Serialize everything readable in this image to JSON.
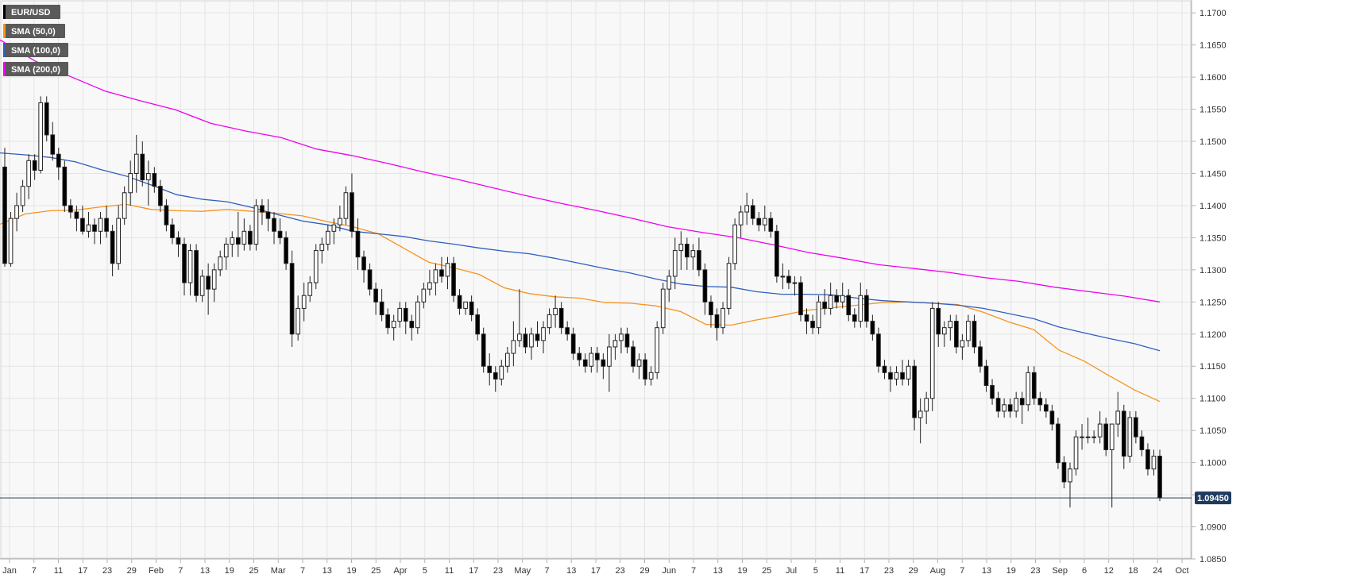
{
  "chart_data": {
    "type": "candlestick",
    "symbol": "EUR/USD",
    "last_price": "1.09450",
    "ylim": [
      1.085,
      1.172
    ],
    "y_ticks": [
      "1.0850",
      "1.0900",
      "1.0950",
      "1.1000",
      "1.1050",
      "1.1100",
      "1.1150",
      "1.1200",
      "1.1250",
      "1.1300",
      "1.1350",
      "1.1400",
      "1.1450",
      "1.1500",
      "1.1550",
      "1.1600",
      "1.1650",
      "1.1700"
    ],
    "x_ticks": [
      "Jan",
      "7",
      "11",
      "17",
      "23",
      "29",
      "Feb",
      "7",
      "13",
      "19",
      "25",
      "Mar",
      "7",
      "13",
      "19",
      "25",
      "Apr",
      "5",
      "11",
      "17",
      "23",
      "May",
      "7",
      "13",
      "17",
      "23",
      "29",
      "Jun",
      "7",
      "13",
      "19",
      "25",
      "Jul",
      "5",
      "11",
      "17",
      "23",
      "29",
      "Aug",
      "7",
      "13",
      "19",
      "23",
      "Sep",
      "6",
      "12",
      "18",
      "24",
      "Oct"
    ],
    "legend": [
      {
        "label": "EUR/USD",
        "color": "#000000"
      },
      {
        "label": "SMA (50,0)",
        "color": "#f7931e"
      },
      {
        "label": "SMA (100,0)",
        "color": "#2e5fbf"
      },
      {
        "label": "SMA (200,0)",
        "color": "#ee00ee"
      }
    ],
    "series": [
      {
        "name": "SMA (50,0)",
        "color": "#f7931e",
        "values": [
          1.1371,
          1.1387,
          1.1392,
          1.1393,
          1.1398,
          1.1402,
          1.1394,
          1.1392,
          1.1391,
          1.1394,
          1.1391,
          1.1388,
          1.1384,
          1.1375,
          1.1367,
          1.1356,
          1.1334,
          1.1312,
          1.1303,
          1.1293,
          1.1272,
          1.1263,
          1.1258,
          1.1256,
          1.1249,
          1.1248,
          1.1244,
          1.1235,
          1.1215,
          1.1214,
          1.1222,
          1.1229,
          1.1237,
          1.1241,
          1.1245,
          1.1249,
          1.125,
          1.1248,
          1.1246,
          1.1234,
          1.1219,
          1.1207,
          1.1175,
          1.1158,
          1.1135,
          1.1113,
          1.1095
        ]
      },
      {
        "name": "SMA (100,0)",
        "color": "#2e5fbf",
        "values": [
          1.1482,
          1.1479,
          1.1475,
          1.1468,
          1.1456,
          1.1446,
          1.1432,
          1.1417,
          1.141,
          1.1406,
          1.1397,
          1.1386,
          1.1376,
          1.137,
          1.136,
          1.1356,
          1.1352,
          1.1345,
          1.134,
          1.1334,
          1.1329,
          1.1325,
          1.1318,
          1.131,
          1.1302,
          1.1295,
          1.1286,
          1.1278,
          1.1274,
          1.1273,
          1.1266,
          1.1262,
          1.1262,
          1.1261,
          1.1256,
          1.1252,
          1.125,
          1.1248,
          1.1245,
          1.124,
          1.1232,
          1.1224,
          1.1211,
          1.1202,
          1.1193,
          1.1185,
          1.1174
        ]
      },
      {
        "name": "SMA (200,0)",
        "color": "#ee00ee",
        "values": [
          1.1658,
          1.1625,
          1.1601,
          1.1578,
          1.1563,
          1.1549,
          1.1528,
          1.1516,
          1.1506,
          1.1488,
          1.1478,
          1.1466,
          1.1453,
          1.1441,
          1.1428,
          1.1415,
          1.1403,
          1.1392,
          1.138,
          1.1367,
          1.1358,
          1.135,
          1.1339,
          1.1327,
          1.1318,
          1.1308,
          1.1302,
          1.1296,
          1.1288,
          1.1282,
          1.1273,
          1.1266,
          1.1259,
          1.125
        ]
      }
    ],
    "candles": [
      [
        1.146,
        1.149,
        1.1305,
        1.131
      ],
      [
        1.131,
        1.139,
        1.1305,
        1.138
      ],
      [
        1.138,
        1.142,
        1.136,
        1.14
      ],
      [
        1.14,
        1.144,
        1.139,
        1.143
      ],
      [
        1.143,
        1.148,
        1.141,
        1.147
      ],
      [
        1.147,
        1.148,
        1.144,
        1.1455
      ],
      [
        1.1455,
        1.157,
        1.145,
        1.156
      ],
      [
        1.156,
        1.157,
        1.15,
        1.151
      ],
      [
        1.151,
        1.153,
        1.147,
        1.148
      ],
      [
        1.148,
        1.149,
        1.144,
        1.146
      ],
      [
        1.146,
        1.147,
        1.139,
        1.14
      ],
      [
        1.14,
        1.141,
        1.138,
        1.139
      ],
      [
        1.139,
        1.14,
        1.136,
        1.138
      ],
      [
        1.138,
        1.14,
        1.1355,
        1.136
      ],
      [
        1.136,
        1.139,
        1.135,
        1.137
      ],
      [
        1.137,
        1.138,
        1.134,
        1.136
      ],
      [
        1.136,
        1.139,
        1.134,
        1.138
      ],
      [
        1.138,
        1.14,
        1.135,
        1.136
      ],
      [
        1.136,
        1.137,
        1.129,
        1.131
      ],
      [
        1.131,
        1.14,
        1.13,
        1.138
      ],
      [
        1.138,
        1.143,
        1.137,
        1.142
      ],
      [
        1.142,
        1.147,
        1.14,
        1.145
      ],
      [
        1.145,
        1.151,
        1.142,
        1.148
      ],
      [
        1.148,
        1.15,
        1.143,
        1.144
      ],
      [
        1.144,
        1.147,
        1.14,
        1.145
      ],
      [
        1.145,
        1.146,
        1.142,
        1.143
      ],
      [
        1.143,
        1.144,
        1.139,
        1.14
      ],
      [
        1.14,
        1.141,
        1.136,
        1.137
      ],
      [
        1.137,
        1.138,
        1.134,
        1.135
      ],
      [
        1.135,
        1.136,
        1.132,
        1.134
      ],
      [
        1.134,
        1.135,
        1.126,
        1.128
      ],
      [
        1.128,
        1.134,
        1.126,
        1.133
      ],
      [
        1.133,
        1.134,
        1.125,
        1.126
      ],
      [
        1.126,
        1.13,
        1.125,
        1.129
      ],
      [
        1.129,
        1.131,
        1.123,
        1.127
      ],
      [
        1.127,
        1.131,
        1.125,
        1.13
      ],
      [
        1.13,
        1.133,
        1.129,
        1.132
      ],
      [
        1.132,
        1.135,
        1.13,
        1.134
      ],
      [
        1.134,
        1.136,
        1.132,
        1.135
      ],
      [
        1.135,
        1.139,
        1.132,
        1.134
      ],
      [
        1.134,
        1.138,
        1.133,
        1.136
      ],
      [
        1.136,
        1.137,
        1.133,
        1.134
      ],
      [
        1.134,
        1.141,
        1.133,
        1.14
      ],
      [
        1.14,
        1.141,
        1.137,
        1.139
      ],
      [
        1.139,
        1.141,
        1.136,
        1.138
      ],
      [
        1.138,
        1.139,
        1.134,
        1.136
      ],
      [
        1.136,
        1.138,
        1.134,
        1.135
      ],
      [
        1.135,
        1.136,
        1.13,
        1.131
      ],
      [
        1.131,
        1.133,
        1.118,
        1.12
      ],
      [
        1.12,
        1.126,
        1.119,
        1.124
      ],
      [
        1.124,
        1.128,
        1.122,
        1.126
      ],
      [
        1.126,
        1.129,
        1.125,
        1.128
      ],
      [
        1.128,
        1.134,
        1.127,
        1.133
      ],
      [
        1.133,
        1.135,
        1.131,
        1.134
      ],
      [
        1.134,
        1.137,
        1.133,
        1.136
      ],
      [
        1.136,
        1.138,
        1.134,
        1.137
      ],
      [
        1.137,
        1.14,
        1.136,
        1.138
      ],
      [
        1.138,
        1.143,
        1.137,
        1.142
      ],
      [
        1.142,
        1.145,
        1.135,
        1.136
      ],
      [
        1.136,
        1.138,
        1.13,
        1.132
      ],
      [
        1.132,
        1.133,
        1.128,
        1.13
      ],
      [
        1.13,
        1.131,
        1.126,
        1.127
      ],
      [
        1.127,
        1.128,
        1.123,
        1.125
      ],
      [
        1.125,
        1.127,
        1.122,
        1.123
      ],
      [
        1.123,
        1.124,
        1.12,
        1.121
      ],
      [
        1.121,
        1.123,
        1.119,
        1.122
      ],
      [
        1.122,
        1.125,
        1.121,
        1.124
      ],
      [
        1.124,
        1.125,
        1.12,
        1.122
      ],
      [
        1.122,
        1.123,
        1.119,
        1.121
      ],
      [
        1.121,
        1.126,
        1.12,
        1.125
      ],
      [
        1.125,
        1.128,
        1.124,
        1.127
      ],
      [
        1.127,
        1.13,
        1.126,
        1.128
      ],
      [
        1.128,
        1.131,
        1.126,
        1.13
      ],
      [
        1.13,
        1.132,
        1.128,
        1.129
      ],
      [
        1.129,
        1.132,
        1.127,
        1.131
      ],
      [
        1.131,
        1.132,
        1.125,
        1.126
      ],
      [
        1.126,
        1.127,
        1.123,
        1.124
      ],
      [
        1.124,
        1.125,
        1.123,
        1.125
      ],
      [
        1.125,
        1.126,
        1.122,
        1.123
      ],
      [
        1.123,
        1.124,
        1.119,
        1.12
      ],
      [
        1.12,
        1.121,
        1.114,
        1.115
      ],
      [
        1.115,
        1.117,
        1.112,
        1.114
      ],
      [
        1.114,
        1.115,
        1.111,
        1.113
      ],
      [
        1.113,
        1.116,
        1.112,
        1.115
      ],
      [
        1.115,
        1.118,
        1.114,
        1.117
      ],
      [
        1.117,
        1.122,
        1.115,
        1.119
      ],
      [
        1.119,
        1.127,
        1.118,
        1.12
      ],
      [
        1.12,
        1.121,
        1.117,
        1.118
      ],
      [
        1.118,
        1.121,
        1.116,
        1.12
      ],
      [
        1.12,
        1.122,
        1.118,
        1.119
      ],
      [
        1.119,
        1.122,
        1.117,
        1.121
      ],
      [
        1.121,
        1.124,
        1.12,
        1.123
      ],
      [
        1.123,
        1.126,
        1.121,
        1.124
      ],
      [
        1.124,
        1.125,
        1.12,
        1.121
      ],
      [
        1.121,
        1.122,
        1.119,
        1.12
      ],
      [
        1.12,
        1.121,
        1.116,
        1.117
      ],
      [
        1.117,
        1.118,
        1.115,
        1.116
      ],
      [
        1.116,
        1.117,
        1.114,
        1.115
      ],
      [
        1.115,
        1.118,
        1.114,
        1.117
      ],
      [
        1.117,
        1.118,
        1.114,
        1.116
      ],
      [
        1.116,
        1.117,
        1.113,
        1.115
      ],
      [
        1.115,
        1.12,
        1.111,
        1.118
      ],
      [
        1.118,
        1.12,
        1.116,
        1.119
      ],
      [
        1.119,
        1.121,
        1.117,
        1.12
      ],
      [
        1.12,
        1.121,
        1.117,
        1.118
      ],
      [
        1.118,
        1.119,
        1.114,
        1.115
      ],
      [
        1.115,
        1.117,
        1.113,
        1.116
      ],
      [
        1.116,
        1.117,
        1.112,
        1.113
      ],
      [
        1.113,
        1.115,
        1.112,
        1.114
      ],
      [
        1.114,
        1.122,
        1.113,
        1.121
      ],
      [
        1.121,
        1.128,
        1.12,
        1.127
      ],
      [
        1.127,
        1.13,
        1.125,
        1.129
      ],
      [
        1.129,
        1.135,
        1.127,
        1.133
      ],
      [
        1.133,
        1.136,
        1.13,
        1.134
      ],
      [
        1.134,
        1.135,
        1.13,
        1.132
      ],
      [
        1.132,
        1.134,
        1.13,
        1.133
      ],
      [
        1.133,
        1.135,
        1.129,
        1.13
      ],
      [
        1.13,
        1.131,
        1.123,
        1.125
      ],
      [
        1.125,
        1.126,
        1.121,
        1.123
      ],
      [
        1.123,
        1.124,
        1.119,
        1.121
      ],
      [
        1.121,
        1.125,
        1.12,
        1.124
      ],
      [
        1.124,
        1.132,
        1.123,
        1.131
      ],
      [
        1.131,
        1.138,
        1.13,
        1.137
      ],
      [
        1.137,
        1.14,
        1.135,
        1.139
      ],
      [
        1.139,
        1.142,
        1.137,
        1.14
      ],
      [
        1.14,
        1.141,
        1.137,
        1.138
      ],
      [
        1.138,
        1.139,
        1.136,
        1.137
      ],
      [
        1.137,
        1.14,
        1.136,
        1.138
      ],
      [
        1.138,
        1.139,
        1.135,
        1.136
      ],
      [
        1.136,
        1.137,
        1.128,
        1.129
      ],
      [
        1.129,
        1.131,
        1.127,
        1.129
      ],
      [
        1.129,
        1.13,
        1.127,
        1.128
      ],
      [
        1.128,
        1.129,
        1.126,
        1.128
      ],
      [
        1.128,
        1.129,
        1.122,
        1.123
      ],
      [
        1.123,
        1.124,
        1.12,
        1.122
      ],
      [
        1.122,
        1.123,
        1.12,
        1.121
      ],
      [
        1.121,
        1.126,
        1.12,
        1.125
      ],
      [
        1.125,
        1.127,
        1.123,
        1.124
      ],
      [
        1.124,
        1.128,
        1.123,
        1.126
      ],
      [
        1.126,
        1.127,
        1.124,
        1.125
      ],
      [
        1.125,
        1.128,
        1.124,
        1.126
      ],
      [
        1.126,
        1.127,
        1.122,
        1.123
      ],
      [
        1.123,
        1.124,
        1.121,
        1.122
      ],
      [
        1.122,
        1.128,
        1.121,
        1.126
      ],
      [
        1.126,
        1.127,
        1.121,
        1.122
      ],
      [
        1.122,
        1.123,
        1.119,
        1.12
      ],
      [
        1.12,
        1.121,
        1.114,
        1.115
      ],
      [
        1.115,
        1.116,
        1.113,
        1.114
      ],
      [
        1.114,
        1.115,
        1.111,
        1.113
      ],
      [
        1.113,
        1.115,
        1.112,
        1.114
      ],
      [
        1.114,
        1.116,
        1.112,
        1.113
      ],
      [
        1.113,
        1.116,
        1.112,
        1.115
      ],
      [
        1.115,
        1.116,
        1.105,
        1.107
      ],
      [
        1.107,
        1.11,
        1.103,
        1.108
      ],
      [
        1.108,
        1.111,
        1.106,
        1.11
      ],
      [
        1.11,
        1.125,
        1.108,
        1.124
      ],
      [
        1.124,
        1.125,
        1.118,
        1.12
      ],
      [
        1.12,
        1.122,
        1.118,
        1.121
      ],
      [
        1.121,
        1.123,
        1.119,
        1.122
      ],
      [
        1.122,
        1.123,
        1.117,
        1.118
      ],
      [
        1.118,
        1.12,
        1.116,
        1.119
      ],
      [
        1.119,
        1.123,
        1.118,
        1.122
      ],
      [
        1.122,
        1.123,
        1.117,
        1.118
      ],
      [
        1.118,
        1.119,
        1.114,
        1.115
      ],
      [
        1.115,
        1.116,
        1.111,
        1.112
      ],
      [
        1.112,
        1.113,
        1.109,
        1.11
      ],
      [
        1.11,
        1.111,
        1.107,
        1.108
      ],
      [
        1.108,
        1.11,
        1.107,
        1.109
      ],
      [
        1.109,
        1.11,
        1.107,
        1.108
      ],
      [
        1.108,
        1.111,
        1.107,
        1.11
      ],
      [
        1.11,
        1.111,
        1.106,
        1.109
      ],
      [
        1.109,
        1.115,
        1.108,
        1.114
      ],
      [
        1.114,
        1.115,
        1.109,
        1.11
      ],
      [
        1.11,
        1.111,
        1.108,
        1.109
      ],
      [
        1.109,
        1.11,
        1.107,
        1.108
      ],
      [
        1.108,
        1.109,
        1.105,
        1.106
      ],
      [
        1.106,
        1.107,
        1.099,
        1.1
      ],
      [
        1.1,
        1.101,
        1.096,
        1.097
      ],
      [
        1.097,
        1.1,
        1.093,
        1.099
      ],
      [
        1.099,
        1.105,
        1.098,
        1.104
      ],
      [
        1.104,
        1.106,
        1.102,
        1.104
      ],
      [
        1.104,
        1.107,
        1.103,
        1.104
      ],
      [
        1.104,
        1.105,
        1.103,
        1.104
      ],
      [
        1.104,
        1.108,
        1.103,
        1.106
      ],
      [
        1.106,
        1.107,
        1.101,
        1.102
      ],
      [
        1.102,
        1.106,
        1.093,
        1.106
      ],
      [
        1.106,
        1.111,
        1.104,
        1.108
      ],
      [
        1.108,
        1.109,
        1.099,
        1.101
      ],
      [
        1.101,
        1.108,
        1.1,
        1.107
      ],
      [
        1.107,
        1.108,
        1.103,
        1.104
      ],
      [
        1.104,
        1.105,
        1.101,
        1.102
      ],
      [
        1.102,
        1.103,
        1.098,
        1.099
      ],
      [
        1.099,
        1.102,
        1.098,
        1.101
      ],
      [
        1.101,
        1.102,
        1.094,
        1.0945
      ]
    ]
  }
}
